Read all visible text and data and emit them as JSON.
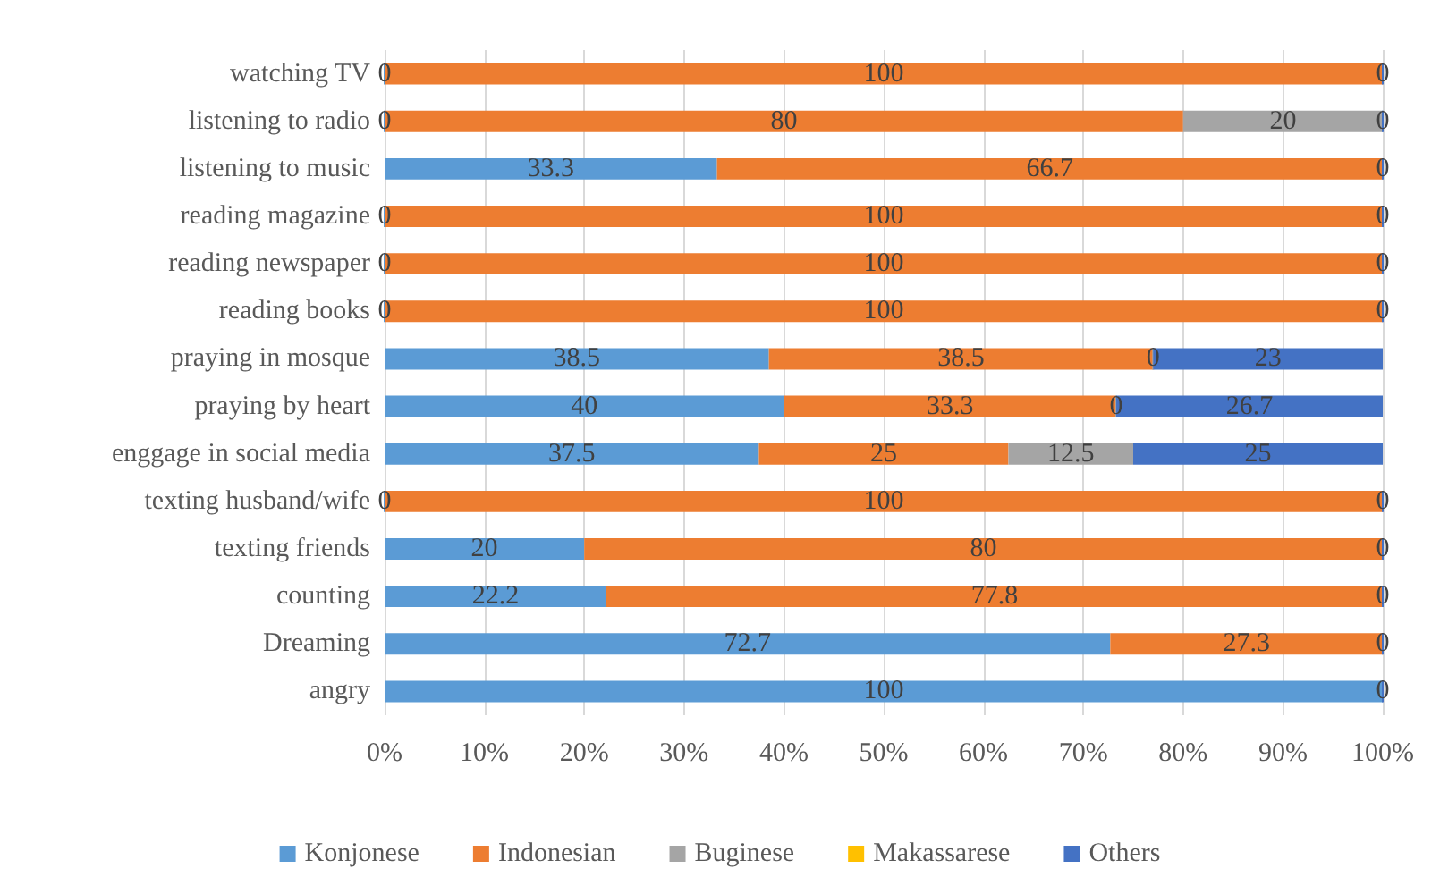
{
  "chart_data": {
    "type": "bar",
    "orientation": "horizontal",
    "stacked": true,
    "categories": [
      "watching TV",
      "listening to radio",
      "listening to music",
      "reading magazine",
      "reading newspaper",
      "reading books",
      "praying in mosque",
      "praying by heart",
      "enggage in social media",
      "texting husband/wife",
      "texting friends",
      "counting",
      "Dreaming",
      "angry"
    ],
    "series": [
      {
        "name": "Konjonese",
        "color": "#5b9bd5",
        "values": [
          0,
          0,
          33.3,
          0,
          0,
          0,
          38.5,
          40,
          37.5,
          0,
          20,
          22.2,
          72.7,
          100
        ],
        "value_labels": [
          "0",
          "0",
          "33.3",
          "0",
          "0",
          "0",
          "38.5",
          "40",
          "37.5",
          "0",
          "20",
          "22.2",
          "72.7",
          "100"
        ]
      },
      {
        "name": "Indonesian",
        "color": "#ed7d31",
        "values": [
          100,
          80,
          66.7,
          100,
          100,
          100,
          38.5,
          33.3,
          25,
          100,
          80,
          77.8,
          27.3,
          0
        ],
        "value_labels": [
          "100",
          "80",
          "66.7",
          "100",
          "100",
          "100",
          "38.5",
          "33.3",
          "25",
          "100",
          "80",
          "77.8",
          "27.3",
          null
        ]
      },
      {
        "name": "Buginese",
        "color": "#a5a5a5",
        "values": [
          0,
          20,
          0,
          0,
          0,
          0,
          0,
          0,
          12.5,
          0,
          0,
          0,
          0,
          0
        ],
        "value_labels": [
          null,
          "20",
          null,
          null,
          null,
          null,
          "0",
          "0",
          "12.5",
          null,
          null,
          null,
          null,
          null
        ]
      },
      {
        "name": "Makassarese",
        "color": "#ffc000",
        "values": [
          0,
          0,
          0,
          0,
          0,
          0,
          0,
          0,
          0,
          0,
          0,
          0,
          0,
          0
        ],
        "value_labels": [
          null,
          null,
          null,
          null,
          null,
          null,
          null,
          null,
          null,
          null,
          null,
          null,
          null,
          null
        ]
      },
      {
        "name": "Others",
        "color": "#4472c4",
        "values": [
          0,
          0,
          0,
          0,
          0,
          0,
          23,
          26.7,
          25,
          0,
          0,
          0,
          0,
          0
        ],
        "value_labels": [
          "0",
          "0",
          "0",
          "0",
          "0",
          "0",
          "23",
          "26.7",
          "25",
          "0",
          "0",
          "0",
          "0",
          "0"
        ]
      }
    ],
    "xlim": [
      0,
      100
    ],
    "xticks": [
      {
        "value": 0,
        "label": "0%"
      },
      {
        "value": 10,
        "label": "10%"
      },
      {
        "value": 20,
        "label": "20%"
      },
      {
        "value": 30,
        "label": "30%"
      },
      {
        "value": 40,
        "label": "40%"
      },
      {
        "value": 50,
        "label": "50%"
      },
      {
        "value": 60,
        "label": "60%"
      },
      {
        "value": 70,
        "label": "70%"
      },
      {
        "value": 80,
        "label": "80%"
      },
      {
        "value": 90,
        "label": "90%"
      },
      {
        "value": 100,
        "label": "100%"
      }
    ],
    "grid": "x",
    "legend": "bottom"
  }
}
